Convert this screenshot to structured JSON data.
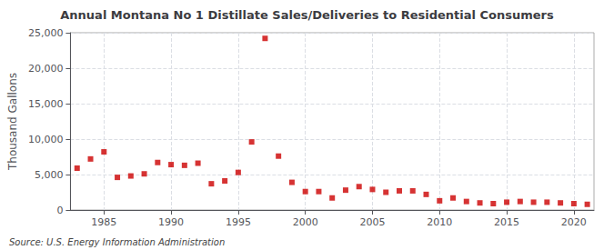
{
  "chart_data": {
    "type": "scatter",
    "title": "Annual Montana No 1 Distillate Sales/Deliveries to Residential Consumers",
    "ylabel": "Thousand Gallons",
    "annotations": [
      "Source: U.S. Energy Information Administration"
    ],
    "x": [
      1983,
      1984,
      1985,
      1986,
      1987,
      1988,
      1989,
      1990,
      1991,
      1992,
      1993,
      1994,
      1995,
      1996,
      1997,
      1998,
      1999,
      2000,
      2001,
      2002,
      2003,
      2004,
      2005,
      2006,
      2007,
      2008,
      2009,
      2010,
      2011,
      2012,
      2013,
      2014,
      2015,
      2016,
      2017,
      2018,
      2019,
      2020,
      2021
    ],
    "values": [
      5900,
      7200,
      8200,
      4600,
      4800,
      5100,
      6700,
      6400,
      6300,
      6600,
      3700,
      4100,
      5300,
      9600,
      24200,
      7600,
      3900,
      2600,
      2600,
      1700,
      2800,
      3300,
      2900,
      2500,
      2700,
      2700,
      2200,
      1300,
      1700,
      1200,
      1000,
      900,
      1100,
      1200,
      1100,
      1100,
      1000,
      900,
      800
    ],
    "color": "#cc0000",
    "marker": "square",
    "xlim": [
      1982.5,
      2021.5
    ],
    "xticks": [
      1985,
      1990,
      1995,
      2000,
      2005,
      2010,
      2015,
      2020
    ],
    "ylim": [
      0,
      25000
    ],
    "yticks": [
      0,
      {
        "value": 5000,
        "label": "5,000"
      },
      {
        "value": 10000,
        "label": "10,000"
      },
      {
        "value": 15000,
        "label": "15,000"
      },
      {
        "value": 20000,
        "label": "20,000"
      },
      {
        "value": 25000,
        "label": "25,000"
      }
    ],
    "grid": true
  }
}
